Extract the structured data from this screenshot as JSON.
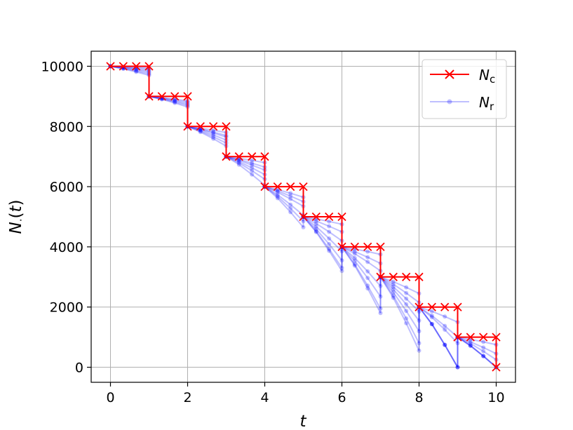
{
  "chart_data": {
    "type": "line",
    "title": "",
    "xlabel": "t",
    "ylabel_main": "N",
    "ylabel_sub": "·",
    "ylabel_paren_open": "(",
    "ylabel_var": "t",
    "ylabel_paren_close": ")",
    "xlim": [
      -0.5,
      10.5
    ],
    "ylim": [
      -500,
      10500
    ],
    "x_ticks": [
      0,
      2,
      4,
      6,
      8,
      10
    ],
    "x_tick_labels": [
      "0",
      "2",
      "4",
      "6",
      "8",
      "10"
    ],
    "y_ticks": [
      0,
      2000,
      4000,
      6000,
      8000,
      10000
    ],
    "y_tick_labels": [
      "0",
      "2000",
      "4000",
      "6000",
      "8000",
      "10000"
    ],
    "grid": true,
    "legend_placement": "top-right",
    "colors": {
      "Nc": "#ff0000",
      "Nr": "#0000ff"
    },
    "series": [
      {
        "name": "N",
        "name_sub": "c",
        "style": "step-x-markers",
        "x": [
          0,
          0.333,
          0.667,
          1,
          1,
          1.333,
          1.667,
          2,
          2,
          2.333,
          2.667,
          3,
          3,
          3.333,
          3.667,
          4,
          4,
          4.333,
          4.667,
          5,
          5,
          5.333,
          5.667,
          6,
          6,
          6.333,
          6.667,
          7,
          7,
          7.333,
          7.667,
          8,
          8,
          8.333,
          8.667,
          9,
          9,
          9.333,
          9.667,
          10,
          10
        ],
        "y": [
          10000,
          10000,
          10000,
          10000,
          9000,
          9000,
          9000,
          9000,
          8000,
          8000,
          8000,
          8000,
          7000,
          7000,
          7000,
          7000,
          6000,
          6000,
          6000,
          6000,
          5000,
          5000,
          5000,
          5000,
          4000,
          4000,
          4000,
          4000,
          3000,
          3000,
          3000,
          3000,
          2000,
          2000,
          2000,
          2000,
          1000,
          1000,
          1000,
          1000,
          0
        ]
      },
      {
        "name": "N",
        "name_sub": "r",
        "style": "faded-dots",
        "interval_starts": [
          10000,
          9000,
          8000,
          7000,
          6000,
          5000,
          4000,
          3000,
          2000,
          1000
        ],
        "end_at_interval_end": [
          [
            9950,
            9900,
            9850,
            9800,
            9750,
            9700
          ],
          [
            8850,
            8800,
            8750,
            8700,
            8650
          ],
          [
            7800,
            7700,
            7650,
            7550,
            7450,
            7350
          ],
          [
            6800,
            6650,
            6550,
            6400,
            6250,
            6050
          ],
          [
            5650,
            5500,
            5350,
            5050,
            4850,
            4650
          ],
          [
            4750,
            4500,
            4200,
            3850,
            3550,
            3300,
            3200
          ],
          [
            3750,
            3450,
            3200,
            2700,
            2350,
            1950,
            1800
          ],
          [
            2450,
            2150,
            1850,
            1550,
            1200,
            800,
            550
          ],
          [
            1500,
            1000,
            800,
            0,
            0,
            0
          ],
          [
            750,
            450,
            250,
            0,
            0,
            0
          ]
        ]
      }
    ]
  }
}
